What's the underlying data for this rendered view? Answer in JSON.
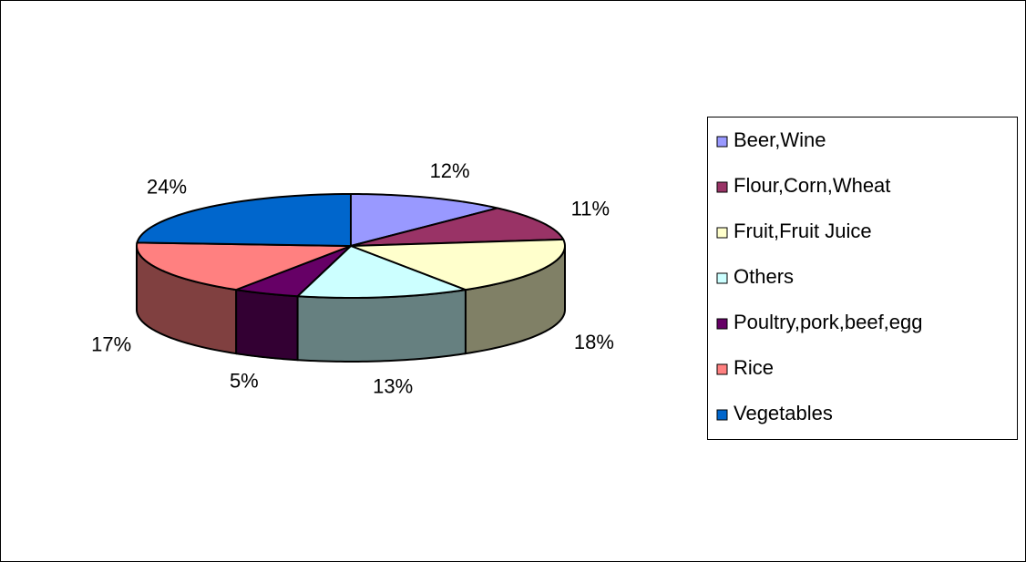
{
  "chart_data": {
    "type": "pie3d",
    "categories": [
      "Beer,Wine",
      "Flour,Corn,Wheat",
      "Fruit,Fruit Juice",
      "Others",
      "Poultry,pork,beef,egg",
      "Rice",
      "Vegetables"
    ],
    "values": [
      12,
      11,
      18,
      13,
      5,
      17,
      24
    ],
    "value_labels": [
      "12%",
      "11%",
      "18%",
      "13%",
      "5%",
      "17%",
      "24%"
    ],
    "colors": [
      "#9999ff",
      "#993366",
      "#ffffcc",
      "#ccffff",
      "#660066",
      "#ff8080",
      "#0066cc"
    ],
    "legend": "right"
  }
}
